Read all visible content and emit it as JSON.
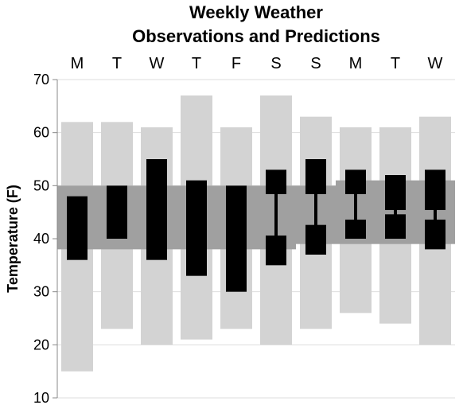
{
  "chart_data": {
    "type": "bar",
    "title_lines": [
      "Weekly Weather",
      "Observations and Predictions"
    ],
    "ylabel": "Temperature (F)",
    "ylim": [
      10,
      70
    ],
    "yticks": [
      10,
      20,
      30,
      40,
      50,
      60,
      70
    ],
    "grid": true,
    "categories": [
      "M",
      "T",
      "W",
      "T",
      "F",
      "S",
      "S",
      "M",
      "T",
      "W"
    ],
    "record": [
      {
        "low": 15,
        "high": 62
      },
      {
        "low": 23,
        "high": 62
      },
      {
        "low": 20,
        "high": 61
      },
      {
        "low": 21,
        "high": 67
      },
      {
        "low": 23,
        "high": 61
      },
      {
        "low": 20,
        "high": 67
      },
      {
        "low": 23,
        "high": 63
      },
      {
        "low": 26,
        "high": 61
      },
      {
        "low": 24,
        "high": 61
      },
      {
        "low": 20,
        "high": 63
      }
    ],
    "normal": [
      {
        "low": 38,
        "high": 50
      },
      {
        "low": 38,
        "high": 50
      },
      {
        "low": 38,
        "high": 50
      },
      {
        "low": 38,
        "high": 50
      },
      {
        "low": 38,
        "high": 50
      },
      {
        "low": 38,
        "high": 50
      },
      {
        "low": 39,
        "high": 50
      },
      {
        "low": 39,
        "high": 51
      },
      {
        "low": 39,
        "high": 51
      },
      {
        "low": 39,
        "high": 51
      }
    ],
    "actual": [
      {
        "low": 36,
        "high": 48
      },
      {
        "low": 40,
        "high": 50
      },
      {
        "low": 36,
        "high": 55
      },
      {
        "low": 33,
        "high": 51
      },
      {
        "low": 30,
        "high": 50
      }
    ],
    "forecast": [
      {
        "low_min": 35,
        "low_max": 40,
        "high_min": 49,
        "high_max": 53
      },
      {
        "low_min": 37,
        "low_max": 42,
        "high_min": 49,
        "high_max": 55
      },
      {
        "low_min": 40,
        "low_max": 43,
        "high_min": 49,
        "high_max": 53
      },
      {
        "low_min": 40,
        "low_max": 44,
        "high_min": 46,
        "high_max": 52
      },
      {
        "low_min": 38,
        "low_max": 43,
        "high_min": 46,
        "high_max": 53
      }
    ],
    "colors": {
      "record": "#d3d3d3",
      "normal": "#a0a0a0",
      "observed": "#000000",
      "grid": "#dddddd",
      "axis": "#888888"
    }
  }
}
